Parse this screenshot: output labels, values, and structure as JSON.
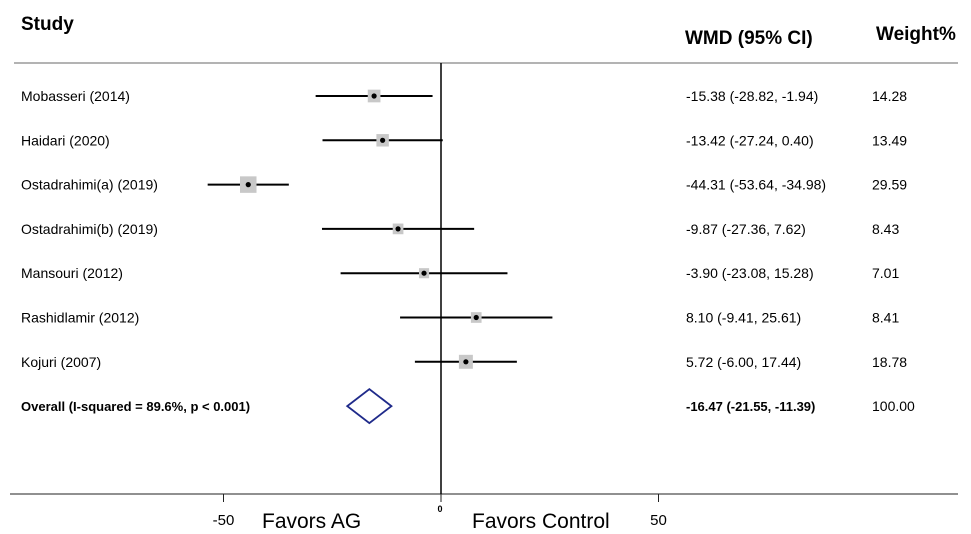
{
  "chart_data": {
    "type": "forest",
    "headers": {
      "study": "Study",
      "effect": "WMD (95% CI)",
      "weight": "Weight%"
    },
    "studies": [
      {
        "name": "Mobasseri (2014)",
        "estimate": -15.38,
        "lower": -28.82,
        "upper": -1.94,
        "ci_text": "-15.38 (-28.82, -1.94)",
        "weight": 14.28,
        "weight_text": "14.28"
      },
      {
        "name": "Haidari (2020)",
        "estimate": -13.42,
        "lower": -27.24,
        "upper": 0.4,
        "ci_text": "-13.42 (-27.24, 0.40)",
        "weight": 13.49,
        "weight_text": "13.49"
      },
      {
        "name": "Ostadrahimi(a) (2019)",
        "estimate": -44.31,
        "lower": -53.64,
        "upper": -34.98,
        "ci_text": "-44.31 (-53.64, -34.98)",
        "weight": 29.59,
        "weight_text": "29.59"
      },
      {
        "name": "Ostadrahimi(b) (2019)",
        "estimate": -9.87,
        "lower": -27.36,
        "upper": 7.62,
        "ci_text": "-9.87 (-27.36, 7.62)",
        "weight": 8.43,
        "weight_text": "8.43"
      },
      {
        "name": "Mansouri (2012)",
        "estimate": -3.9,
        "lower": -23.08,
        "upper": 15.28,
        "ci_text": "-3.90 (-23.08, 15.28)",
        "weight": 7.01,
        "weight_text": "7.01"
      },
      {
        "name": "Rashidlamir (2012)",
        "estimate": 8.1,
        "lower": -9.41,
        "upper": 25.61,
        "ci_text": "8.10 (-9.41, 25.61)",
        "weight": 8.41,
        "weight_text": "8.41"
      },
      {
        "name": "Kojuri (2007)",
        "estimate": 5.72,
        "lower": -6.0,
        "upper": 17.44,
        "ci_text": "5.72 (-6.00, 17.44)",
        "weight": 18.78,
        "weight_text": "18.78"
      }
    ],
    "overall": {
      "name": "Overall  (I-squared = 89.6%, p < 0.001)",
      "estimate": -16.47,
      "lower": -21.55,
      "upper": -11.39,
      "ci_text": "-16.47 (-21.55, -11.39)",
      "weight_text": "100.00"
    },
    "x_ticks": [
      {
        "value": -50,
        "label": "-50"
      },
      {
        "value": 0,
        "label": "0"
      },
      {
        "value": 50,
        "label": "50"
      }
    ],
    "favors_left": "Favors AG",
    "favors_right": "Favors Control",
    "colors": {
      "box": "#c8c8c8",
      "diamond": "#1f2a8a",
      "line": "#000000"
    }
  }
}
